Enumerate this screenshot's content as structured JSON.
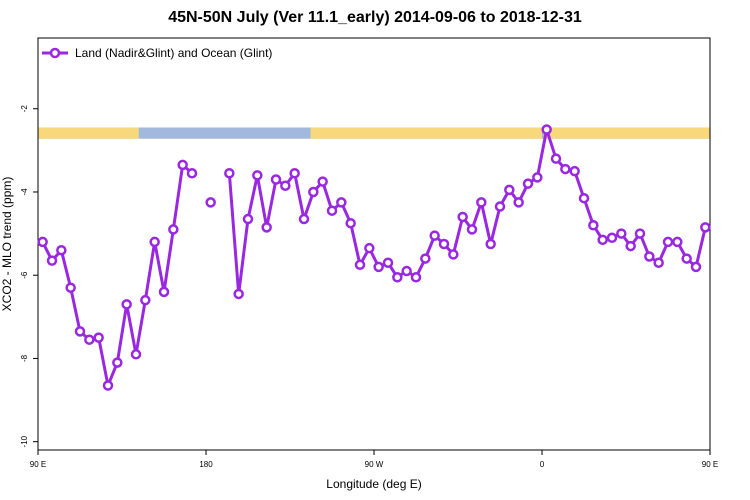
{
  "chart_data": {
    "type": "line",
    "title": "45N-50N July (Ver 11.1_early)   2014-09-06 to 2018-12-31",
    "xlabel": "Longitude (deg E)",
    "ylabel": "XCO2 - MLO trend (ppm)",
    "xlim": [
      90,
      450
    ],
    "ylim": [
      -10.2,
      -0.3
    ],
    "x_ticks": [
      {
        "value": 90,
        "label": "90 E"
      },
      {
        "value": 180,
        "label": "180"
      },
      {
        "value": 270,
        "label": "90 W"
      },
      {
        "value": 360,
        "label": "0"
      },
      {
        "value": 450,
        "label": "90 E"
      },
      {
        "value": 540,
        "label": "180"
      }
    ],
    "y_ticks": [
      {
        "value": -2,
        "label": "-2"
      },
      {
        "value": -4,
        "label": "-4"
      },
      {
        "value": -6,
        "label": "-6"
      },
      {
        "value": -8,
        "label": "-8"
      },
      {
        "value": -10,
        "label": "-10"
      }
    ],
    "legend_position": "top-left",
    "grid": false,
    "land_ocean_band": {
      "y_range": [
        -2.45,
        -2.72
      ],
      "land_color": "#f7d97c",
      "ocean_color": "#a2b8dc",
      "land_segments": [
        [
          90,
          144
        ],
        [
          236,
          360
        ],
        [
          361,
          452
        ]
      ]
    },
    "series": [
      {
        "name": "Land (Nadir&Glint) and Ocean (Glint)",
        "color": "#9a28e0",
        "points": [
          {
            "x": 92.5,
            "y": -5.2
          },
          {
            "x": 97.5,
            "y": -5.65
          },
          {
            "x": 102.5,
            "y": -5.4
          },
          {
            "x": 107.5,
            "y": -6.3
          },
          {
            "x": 112.5,
            "y": -7.35
          },
          {
            "x": 117.5,
            "y": -7.55
          },
          {
            "x": 122.5,
            "y": -7.5
          },
          {
            "x": 127.5,
            "y": -8.65
          },
          {
            "x": 132.5,
            "y": -8.1
          },
          {
            "x": 137.5,
            "y": -6.7
          },
          {
            "x": 142.5,
            "y": -7.9
          },
          {
            "x": 147.5,
            "y": -6.6
          },
          {
            "x": 152.5,
            "y": -5.2
          },
          {
            "x": 157.5,
            "y": -6.4
          },
          {
            "x": 162.5,
            "y": -4.9
          },
          {
            "x": 167.5,
            "y": -3.35
          },
          {
            "x": 172.5,
            "y": -3.55
          },
          {
            "x": 177.5,
            "y": null
          },
          {
            "x": 182.5,
            "y": -4.25
          },
          {
            "x": 187.5,
            "y": null
          },
          {
            "x": 192.5,
            "y": -3.55
          },
          {
            "x": 197.5,
            "y": -6.45
          },
          {
            "x": 202.5,
            "y": -4.65
          },
          {
            "x": 207.5,
            "y": -3.6
          },
          {
            "x": 212.5,
            "y": -4.85
          },
          {
            "x": 217.5,
            "y": -3.7
          },
          {
            "x": 222.5,
            "y": -3.85
          },
          {
            "x": 227.5,
            "y": -3.55
          },
          {
            "x": 232.5,
            "y": -4.65
          },
          {
            "x": 237.5,
            "y": -4.0
          },
          {
            "x": 242.5,
            "y": -3.75
          },
          {
            "x": 247.5,
            "y": -4.45
          },
          {
            "x": 252.5,
            "y": -4.25
          },
          {
            "x": 257.5,
            "y": -4.75
          },
          {
            "x": 262.5,
            "y": -5.75
          },
          {
            "x": 267.5,
            "y": -5.35
          },
          {
            "x": 272.5,
            "y": -5.8
          },
          {
            "x": 277.5,
            "y": -5.7
          },
          {
            "x": 282.5,
            "y": -6.05
          },
          {
            "x": 287.5,
            "y": -5.9
          },
          {
            "x": 292.5,
            "y": -6.05
          },
          {
            "x": 297.5,
            "y": -5.6
          },
          {
            "x": 302.5,
            "y": -5.05
          },
          {
            "x": 307.5,
            "y": -5.25
          },
          {
            "x": 312.5,
            "y": -5.5
          },
          {
            "x": 317.5,
            "y": -4.6
          },
          {
            "x": 322.5,
            "y": -4.9
          },
          {
            "x": 327.5,
            "y": -4.25
          },
          {
            "x": 332.5,
            "y": -5.25
          },
          {
            "x": 337.5,
            "y": -4.35
          },
          {
            "x": 342.5,
            "y": -3.95
          },
          {
            "x": 347.5,
            "y": -4.25
          },
          {
            "x": 352.5,
            "y": -3.8
          },
          {
            "x": 357.5,
            "y": -3.65
          },
          {
            "x": 362.5,
            "y": -2.5
          },
          {
            "x": 367.5,
            "y": -3.2
          },
          {
            "x": 372.5,
            "y": -3.45
          },
          {
            "x": 377.5,
            "y": -3.5
          },
          {
            "x": 382.5,
            "y": -4.15
          },
          {
            "x": 387.5,
            "y": -4.8
          },
          {
            "x": 392.5,
            "y": -5.15
          },
          {
            "x": 397.5,
            "y": -5.1
          },
          {
            "x": 402.5,
            "y": -5.0
          },
          {
            "x": 407.5,
            "y": -5.3
          },
          {
            "x": 412.5,
            "y": -5.0
          },
          {
            "x": 417.5,
            "y": -5.55
          },
          {
            "x": 422.5,
            "y": -5.7
          },
          {
            "x": 427.5,
            "y": -5.2
          },
          {
            "x": 432.5,
            "y": -5.2
          },
          {
            "x": 437.5,
            "y": -5.6
          },
          {
            "x": 442.5,
            "y": -5.8
          },
          {
            "x": 447.5,
            "y": -4.85
          }
        ]
      }
    ]
  }
}
